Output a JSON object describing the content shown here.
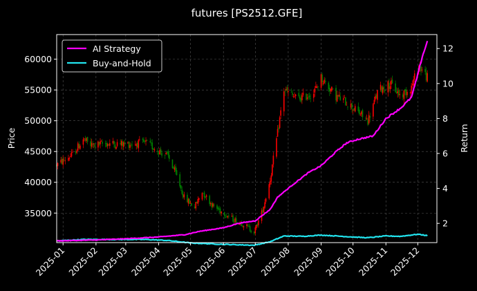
{
  "chart_data": {
    "type": "line",
    "title": "futures [PS2512.GFE]",
    "ylabel": "Price",
    "y2label": "Return",
    "ylim": [
      30200,
      64000
    ],
    "y2lim": [
      0.9,
      12.8
    ],
    "xlim": [
      "2024-12-26",
      "2025-12-19"
    ],
    "x_ticks": [
      "2025-01",
      "2025-02",
      "2025-03",
      "2025-04",
      "2025-05",
      "2025-06",
      "2025-07",
      "2025-08",
      "2025-09",
      "2025-10",
      "2025-11",
      "2025-12"
    ],
    "y_ticks": [
      "35000",
      "40000",
      "45000",
      "50000",
      "55000",
      "60000"
    ],
    "y2_ticks": [
      "2",
      "4",
      "6",
      "8",
      "10",
      "12"
    ],
    "grid": true,
    "legend_position": "top-left",
    "colors": {
      "up": "#ff0000",
      "down": "#008000",
      "strategy": "#ff00ff",
      "buy_hold": "#22e5f0",
      "background": "#000000",
      "grid": "#555555"
    },
    "price_series": {
      "name": "PS2512.GFE",
      "points": [
        [
          "2024-12-26",
          42800
        ],
        [
          "2025-01-10",
          44500
        ],
        [
          "2025-01-20",
          47000
        ],
        [
          "2025-01-27",
          46000
        ],
        [
          "2025-02-10",
          46300
        ],
        [
          "2025-03-01",
          46200
        ],
        [
          "2025-03-20",
          46400
        ],
        [
          "2025-04-10",
          44200
        ],
        [
          "2025-04-18",
          41000
        ],
        [
          "2025-04-25",
          37500
        ],
        [
          "2025-05-05",
          36000
        ],
        [
          "2025-05-12",
          38500
        ],
        [
          "2025-05-22",
          36200
        ],
        [
          "2025-06-10",
          34000
        ],
        [
          "2025-06-20",
          33200
        ],
        [
          "2025-06-30",
          31900
        ],
        [
          "2025-07-08",
          35500
        ],
        [
          "2025-07-15",
          40500
        ],
        [
          "2025-07-22",
          48000
        ],
        [
          "2025-07-28",
          55000
        ],
        [
          "2025-08-10",
          53500
        ],
        [
          "2025-08-25",
          54500
        ],
        [
          "2025-09-01",
          57000
        ],
        [
          "2025-09-15",
          54000
        ],
        [
          "2025-09-25",
          53000
        ],
        [
          "2025-10-15",
          50000
        ],
        [
          "2025-10-25",
          55000
        ],
        [
          "2025-11-05",
          56000
        ],
        [
          "2025-11-15",
          54000
        ],
        [
          "2025-11-25",
          55500
        ],
        [
          "2025-12-02",
          59000
        ],
        [
          "2025-12-10",
          57000
        ]
      ]
    },
    "series": [
      {
        "name": "AI Strategy",
        "points": [
          [
            "2024-12-26",
            1.0
          ],
          [
            "2025-02-01",
            1.05
          ],
          [
            "2025-03-01",
            1.12
          ],
          [
            "2025-04-01",
            1.22
          ],
          [
            "2025-04-25",
            1.35
          ],
          [
            "2025-05-10",
            1.55
          ],
          [
            "2025-06-01",
            1.75
          ],
          [
            "2025-06-15",
            2.0
          ],
          [
            "2025-07-01",
            2.15
          ],
          [
            "2025-07-15",
            2.8
          ],
          [
            "2025-07-22",
            3.5
          ],
          [
            "2025-08-05",
            4.2
          ],
          [
            "2025-08-20",
            4.9
          ],
          [
            "2025-09-01",
            5.3
          ],
          [
            "2025-09-15",
            6.1
          ],
          [
            "2025-09-25",
            6.6
          ],
          [
            "2025-10-05",
            6.8
          ],
          [
            "2025-10-20",
            7.0
          ],
          [
            "2025-11-01",
            8.0
          ],
          [
            "2025-11-15",
            8.6
          ],
          [
            "2025-11-25",
            9.2
          ],
          [
            "2025-12-01",
            10.5
          ],
          [
            "2025-12-05",
            11.5
          ],
          [
            "2025-12-10",
            12.4
          ]
        ]
      },
      {
        "name": "Buy-and-Hold",
        "points": [
          [
            "2024-12-26",
            1.0
          ],
          [
            "2025-01-20",
            1.08
          ],
          [
            "2025-02-20",
            1.08
          ],
          [
            "2025-03-20",
            1.08
          ],
          [
            "2025-04-10",
            1.02
          ],
          [
            "2025-05-01",
            0.88
          ],
          [
            "2025-06-01",
            0.8
          ],
          [
            "2025-06-30",
            0.75
          ],
          [
            "2025-07-15",
            0.95
          ],
          [
            "2025-07-28",
            1.28
          ],
          [
            "2025-08-15",
            1.26
          ],
          [
            "2025-09-01",
            1.33
          ],
          [
            "2025-09-15",
            1.28
          ],
          [
            "2025-10-01",
            1.22
          ],
          [
            "2025-10-15",
            1.18
          ],
          [
            "2025-11-01",
            1.28
          ],
          [
            "2025-11-15",
            1.26
          ],
          [
            "2025-12-01",
            1.38
          ],
          [
            "2025-12-10",
            1.3
          ]
        ]
      }
    ]
  }
}
